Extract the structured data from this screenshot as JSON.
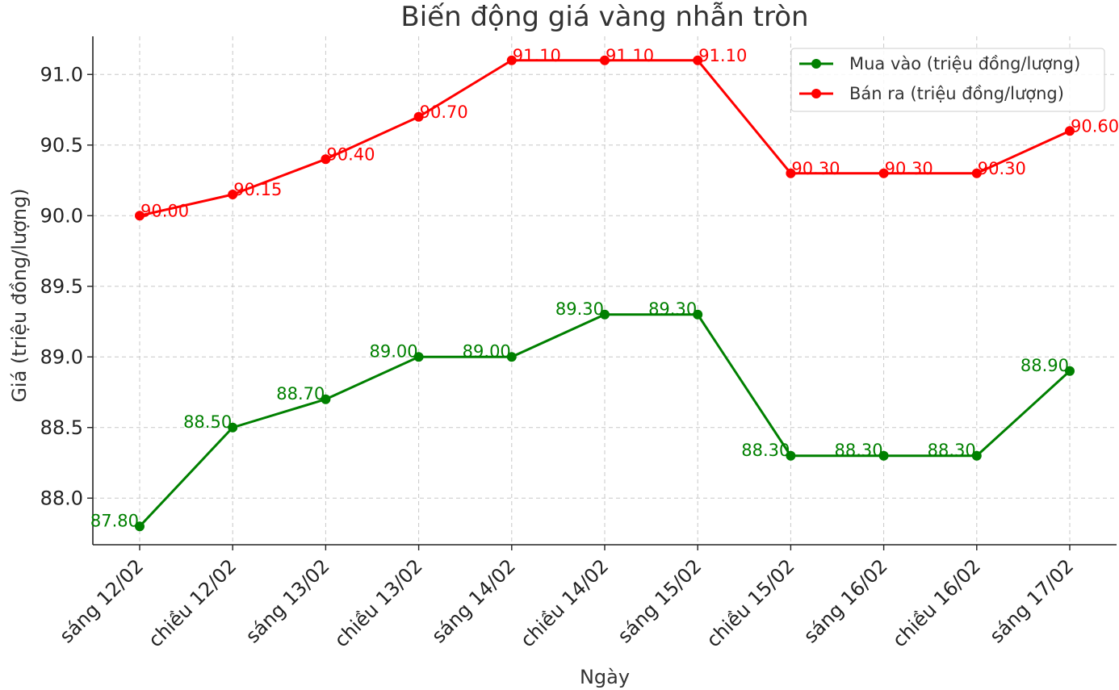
{
  "chart_data": {
    "type": "line",
    "title": "Biến động giá vàng nhẫn tròn",
    "xlabel": "Ngày",
    "ylabel": "Giá (triệu đồng/lượng)",
    "categories": [
      "sáng 12/02",
      "chiều 12/02",
      "sáng 13/02",
      "chiều 13/02",
      "sáng 14/02",
      "chiều 14/02",
      "sáng 15/02",
      "chiều 15/02",
      "sáng 16/02",
      "chiều 16/02",
      "sáng 17/02"
    ],
    "ylim": [
      87.67,
      91.27
    ],
    "yticks": [
      88.0,
      88.5,
      89.0,
      89.5,
      90.0,
      90.5,
      91.0
    ],
    "ytick_labels": [
      "88.0",
      "88.5",
      "89.0",
      "89.5",
      "90.0",
      "90.5",
      "91.0"
    ],
    "grid": true,
    "legend_position": "top-right",
    "series": [
      {
        "name": "Mua vào (triệu đồng/lượng)",
        "color": "#008000",
        "values": [
          87.8,
          88.5,
          88.7,
          89.0,
          89.0,
          89.3,
          89.3,
          88.3,
          88.3,
          88.3,
          88.9
        ],
        "labels": [
          "87.80",
          "88.50",
          "88.70",
          "89.00",
          "89.00",
          "89.30",
          "89.30",
          "88.30",
          "88.30",
          "88.30",
          "88.90"
        ],
        "label_side": "left"
      },
      {
        "name": "Bán ra (triệu đồng/lượng)",
        "color": "#ff0000",
        "values": [
          90.0,
          90.15,
          90.4,
          90.7,
          91.1,
          91.1,
          91.1,
          90.3,
          90.3,
          90.3,
          90.6
        ],
        "labels": [
          "90.00",
          "90.15",
          "90.40",
          "90.70",
          "91.10",
          "91.10",
          "91.10",
          "90.30",
          "90.30",
          "90.30",
          "90.60"
        ],
        "label_side": "right"
      }
    ]
  }
}
